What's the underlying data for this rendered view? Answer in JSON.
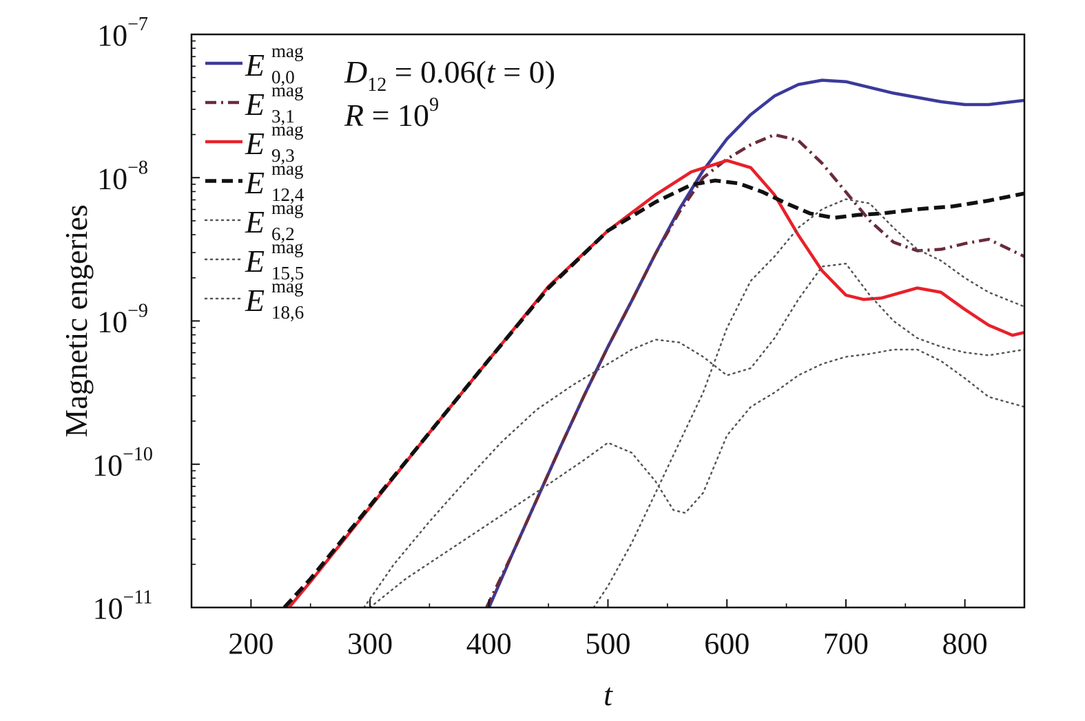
{
  "chart_data": {
    "type": "line",
    "title": "",
    "xlabel": "t",
    "ylabel": "Magnetic engeries",
    "xlim": [
      150,
      850
    ],
    "ylim_log10": [
      -11,
      -7
    ],
    "yscale": "log",
    "grid": false,
    "legend_position": "top-left",
    "x_ticks": [
      "200",
      "300",
      "400",
      "500",
      "600",
      "700",
      "800"
    ],
    "x_tick_values": [
      200,
      300,
      400,
      500,
      600,
      700,
      800
    ],
    "y_ticks": [
      {
        "exp": -11,
        "base": "10",
        "sup": "−11"
      },
      {
        "exp": -10,
        "base": "10",
        "sup": "−10"
      },
      {
        "exp": -9,
        "base": "10",
        "sup": "−9"
      },
      {
        "exp": -8,
        "base": "10",
        "sup": "−8"
      },
      {
        "exp": -7,
        "base": "10",
        "sup": "−7"
      }
    ],
    "annotations": {
      "line1": {
        "d": "D",
        "sub": "12",
        "rest": " = 0.06(",
        "t": "t",
        "end": " = 0)"
      },
      "line2": {
        "r": "R",
        "rest": " = 10",
        "sup": "9"
      }
    },
    "series": [
      {
        "name_sup": "mag",
        "name_sub": "0,0",
        "color": "#3b3a9a",
        "style": "solid",
        "width": 4.5,
        "x": [
          400,
          420,
          440,
          460,
          480,
          500,
          520,
          540,
          560,
          580,
          600,
          620,
          640,
          660,
          680,
          700,
          720,
          740,
          760,
          780,
          800,
          820,
          850
        ],
        "log10y": [
          -11.0,
          -10.62,
          -10.25,
          -9.88,
          -9.52,
          -9.18,
          -8.86,
          -8.53,
          -8.22,
          -7.95,
          -7.73,
          -7.56,
          -7.43,
          -7.35,
          -7.32,
          -7.33,
          -7.37,
          -7.41,
          -7.44,
          -7.47,
          -7.49,
          -7.49,
          -7.46
        ]
      },
      {
        "name_sup": "mag",
        "name_sub": "3,1",
        "color": "#6a2b3a",
        "style": "dashdot",
        "width": 4.5,
        "x": [
          398,
          420,
          440,
          460,
          480,
          500,
          520,
          540,
          560,
          580,
          600,
          620,
          640,
          660,
          680,
          700,
          720,
          740,
          760,
          780,
          800,
          820,
          850
        ],
        "log10y": [
          -11.0,
          -10.62,
          -10.25,
          -9.88,
          -9.52,
          -9.18,
          -8.86,
          -8.53,
          -8.24,
          -8.0,
          -7.87,
          -7.77,
          -7.7,
          -7.74,
          -7.9,
          -8.1,
          -8.3,
          -8.45,
          -8.51,
          -8.5,
          -8.46,
          -8.43,
          -8.55
        ]
      },
      {
        "name_sup": "mag",
        "name_sub": "9,3",
        "color": "#e8202a",
        "style": "solid",
        "width": 4.5,
        "x": [
          232,
          250,
          300,
          350,
          400,
          450,
          500,
          540,
          570,
          600,
          620,
          640,
          660,
          680,
          700,
          715,
          730,
          760,
          780,
          800,
          820,
          840,
          850
        ],
        "log10y": [
          -11.0,
          -10.82,
          -10.3,
          -9.78,
          -9.27,
          -8.76,
          -8.37,
          -8.12,
          -7.96,
          -7.88,
          -7.93,
          -8.12,
          -8.4,
          -8.65,
          -8.82,
          -8.85,
          -8.84,
          -8.77,
          -8.8,
          -8.92,
          -9.03,
          -9.1,
          -9.08
        ]
      },
      {
        "name_sup": "mag",
        "name_sub": "12,4",
        "color": "#111111",
        "style": "dashed",
        "width": 5.5,
        "x": [
          228,
          250,
          300,
          350,
          400,
          450,
          500,
          540,
          570,
          590,
          610,
          630,
          650,
          670,
          690,
          710,
          730,
          760,
          790,
          820,
          850
        ],
        "log10y": [
          -11.0,
          -10.8,
          -10.29,
          -9.78,
          -9.27,
          -8.77,
          -8.37,
          -8.17,
          -8.05,
          -8.02,
          -8.04,
          -8.1,
          -8.18,
          -8.25,
          -8.28,
          -8.26,
          -8.25,
          -8.22,
          -8.2,
          -8.16,
          -8.11
        ]
      },
      {
        "name_sup": "mag",
        "name_sub": "6,2",
        "color": "#555555",
        "style": "dotted",
        "width": 2.5,
        "x": [
          295,
          320,
          350,
          380,
          410,
          440,
          470,
          500,
          520,
          540,
          560,
          580,
          600,
          620,
          640,
          660,
          680,
          700,
          720,
          740,
          760,
          780,
          800,
          820,
          850
        ],
        "log10y": [
          -11.0,
          -10.7,
          -10.4,
          -10.12,
          -9.85,
          -9.62,
          -9.45,
          -9.3,
          -9.2,
          -9.13,
          -9.15,
          -9.25,
          -9.38,
          -9.33,
          -9.12,
          -8.85,
          -8.62,
          -8.6,
          -8.82,
          -9.0,
          -9.12,
          -9.18,
          -9.22,
          -9.24,
          -9.2
        ]
      },
      {
        "name_sup": "mag",
        "name_sub": "15,5",
        "color": "#555555",
        "style": "dotted",
        "width": 2.5,
        "x": [
          488,
          500,
          520,
          540,
          560,
          580,
          600,
          620,
          640,
          660,
          680,
          700,
          720,
          740,
          760,
          780,
          800,
          820,
          850
        ],
        "log10y": [
          -11.0,
          -10.85,
          -10.55,
          -10.2,
          -9.85,
          -9.5,
          -9.05,
          -8.72,
          -8.55,
          -8.35,
          -8.22,
          -8.15,
          -8.18,
          -8.35,
          -8.5,
          -8.58,
          -8.7,
          -8.8,
          -8.9
        ]
      },
      {
        "name_sup": "mag",
        "name_sub": "18,6",
        "color": "#555555",
        "style": "dotted",
        "width": 2.5,
        "x": [
          300,
          330,
          370,
          410,
          450,
          480,
          500,
          520,
          540,
          555,
          565,
          580,
          600,
          620,
          640,
          660,
          680,
          700,
          720,
          740,
          760,
          780,
          800,
          820,
          850
        ],
        "log10y": [
          -11.0,
          -10.8,
          -10.58,
          -10.36,
          -10.14,
          -9.97,
          -9.85,
          -9.92,
          -10.12,
          -10.32,
          -10.34,
          -10.2,
          -9.8,
          -9.6,
          -9.5,
          -9.38,
          -9.3,
          -9.25,
          -9.23,
          -9.2,
          -9.2,
          -9.28,
          -9.4,
          -9.53,
          -9.6
        ]
      }
    ]
  }
}
